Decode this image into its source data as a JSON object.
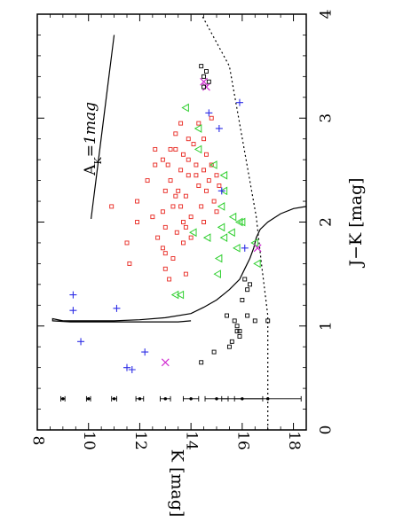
{
  "chart_data": {
    "type": "scatter",
    "title": "",
    "orientation": "rotated-90-clockwise",
    "xlabel": "J−K  [mag]",
    "ylabel": "K  [mag]",
    "xlim": [
      0,
      4
    ],
    "ylim": [
      18.5,
      8
    ],
    "x_ticks": [
      0,
      1,
      2,
      3,
      4
    ],
    "x_tick_labels": [
      "0",
      "1",
      "2",
      "3",
      "4"
    ],
    "y_ticks": [
      8,
      10,
      12,
      14,
      16,
      18
    ],
    "y_tick_labels": [
      "8",
      "10",
      "12",
      "14",
      "16",
      "18"
    ],
    "grid": false,
    "colors": {
      "axes": "#000000",
      "red_squares": "#e8261f",
      "green_triangles": "#2fcf2f",
      "blue_plus": "#2e2ee6",
      "magenta_x": "#d12ed1",
      "black_squares": "#000000"
    },
    "annotation": {
      "label_main": "A",
      "label_sub": "K",
      "label_tail": "=1mag",
      "reddening_vector": [
        [
          2.03,
          10.1
        ],
        [
          3.8,
          11.0
        ]
      ]
    },
    "series": [
      {
        "marker": "square-open",
        "color": "#e8261f",
        "points": [
          [
            2.15,
            10.9
          ],
          [
            2.2,
            11.9
          ],
          [
            2.0,
            11.9
          ],
          [
            1.8,
            11.5
          ],
          [
            1.6,
            11.6
          ],
          [
            2.7,
            12.6
          ],
          [
            2.4,
            12.3
          ],
          [
            2.55,
            12.6
          ],
          [
            2.05,
            12.5
          ],
          [
            2.1,
            12.9
          ],
          [
            1.85,
            12.7
          ],
          [
            1.75,
            12.9
          ],
          [
            2.3,
            13.0
          ],
          [
            2.55,
            13.1
          ],
          [
            2.7,
            13.4
          ],
          [
            2.4,
            13.2
          ],
          [
            2.15,
            13.3
          ],
          [
            1.95,
            13.0
          ],
          [
            1.7,
            13.0
          ],
          [
            1.55,
            13.0
          ],
          [
            1.45,
            13.15
          ],
          [
            2.85,
            13.4
          ],
          [
            2.95,
            13.6
          ],
          [
            2.65,
            13.7
          ],
          [
            2.5,
            13.6
          ],
          [
            2.3,
            13.5
          ],
          [
            2.15,
            13.6
          ],
          [
            2.0,
            13.7
          ],
          [
            1.9,
            13.45
          ],
          [
            1.8,
            13.7
          ],
          [
            2.75,
            14.1
          ],
          [
            2.6,
            13.9
          ],
          [
            2.45,
            13.9
          ],
          [
            2.25,
            13.8
          ],
          [
            2.05,
            14.0
          ],
          [
            1.95,
            13.8
          ],
          [
            2.55,
            14.2
          ],
          [
            2.35,
            14.3
          ],
          [
            2.15,
            14.4
          ],
          [
            2.0,
            14.5
          ],
          [
            1.85,
            14.0
          ],
          [
            2.5,
            14.5
          ],
          [
            2.65,
            14.6
          ],
          [
            2.95,
            14.3
          ],
          [
            2.55,
            14.8
          ],
          [
            2.4,
            14.7
          ],
          [
            2.3,
            14.6
          ],
          [
            2.2,
            14.9
          ],
          [
            2.1,
            15.0
          ],
          [
            2.35,
            15.1
          ],
          [
            2.45,
            15.0
          ],
          [
            2.45,
            14.2
          ],
          [
            2.8,
            14.5
          ],
          [
            3.0,
            14.8
          ],
          [
            2.25,
            13.4
          ],
          [
            2.8,
            13.9
          ],
          [
            2.7,
            13.2
          ],
          [
            1.5,
            13.8
          ],
          [
            1.65,
            13.3
          ],
          [
            2.6,
            12.9
          ]
        ]
      },
      {
        "marker": "triangle-left-open",
        "color": "#2fcf2f",
        "points": [
          [
            3.1,
            13.8
          ],
          [
            2.9,
            14.3
          ],
          [
            2.7,
            14.3
          ],
          [
            2.55,
            14.9
          ],
          [
            2.45,
            15.3
          ],
          [
            2.3,
            15.3
          ],
          [
            2.15,
            15.2
          ],
          [
            2.0,
            16.0
          ],
          [
            2.05,
            15.65
          ],
          [
            1.95,
            15.2
          ],
          [
            1.9,
            14.1
          ],
          [
            1.85,
            14.65
          ],
          [
            1.8,
            16.5
          ],
          [
            1.65,
            15.1
          ],
          [
            1.6,
            16.6
          ],
          [
            1.5,
            15.05
          ],
          [
            1.3,
            13.4
          ],
          [
            1.3,
            13.6
          ],
          [
            1.75,
            15.8
          ],
          [
            1.9,
            15.6
          ],
          [
            2.0,
            15.9
          ],
          [
            1.85,
            15.3
          ]
        ]
      },
      {
        "marker": "plus",
        "color": "#2e2ee6",
        "points": [
          [
            3.15,
            15.9
          ],
          [
            3.05,
            14.7
          ],
          [
            2.9,
            15.1
          ],
          [
            2.3,
            15.2
          ],
          [
            1.75,
            16.1
          ],
          [
            1.3,
            9.4
          ],
          [
            1.15,
            9.4
          ],
          [
            1.17,
            11.1
          ],
          [
            0.85,
            9.7
          ],
          [
            0.75,
            12.2
          ],
          [
            0.6,
            11.5
          ],
          [
            0.58,
            11.7
          ]
        ]
      },
      {
        "marker": "x",
        "color": "#d12ed1",
        "points": [
          [
            3.3,
            14.6
          ],
          [
            3.35,
            14.5
          ],
          [
            1.75,
            16.6
          ],
          [
            0.65,
            13.0
          ]
        ]
      },
      {
        "marker": "square-open",
        "color": "#000000",
        "points": [
          [
            3.5,
            14.4
          ],
          [
            3.45,
            14.6
          ],
          [
            3.4,
            14.5
          ],
          [
            3.35,
            14.7
          ],
          [
            3.3,
            14.5
          ],
          [
            1.45,
            16.1
          ],
          [
            1.4,
            16.3
          ],
          [
            1.35,
            16.2
          ],
          [
            1.25,
            16.0
          ],
          [
            1.1,
            15.4
          ],
          [
            1.05,
            15.7
          ],
          [
            1.0,
            15.8
          ],
          [
            0.95,
            15.8
          ],
          [
            0.9,
            15.9
          ],
          [
            0.85,
            15.6
          ],
          [
            0.8,
            15.5
          ],
          [
            1.05,
            16.5
          ],
          [
            1.05,
            17.0
          ],
          [
            0.75,
            14.9
          ],
          [
            0.65,
            14.4
          ],
          [
            1.1,
            16.2
          ],
          [
            0.95,
            15.9
          ]
        ]
      },
      {
        "marker": "errorbar",
        "color": "#000000",
        "points": [
          [
            0.3,
            9.0,
            0.08
          ],
          [
            0.3,
            10.0,
            0.08
          ],
          [
            0.3,
            11.0,
            0.1
          ],
          [
            0.3,
            12.0,
            0.15
          ],
          [
            0.3,
            13.0,
            0.2
          ],
          [
            0.3,
            14.0,
            0.3
          ],
          [
            0.3,
            15.0,
            0.45
          ],
          [
            0.3,
            16.0,
            0.8
          ],
          [
            0.3,
            17.0,
            1.3
          ]
        ]
      }
    ],
    "lines": [
      {
        "style": "solid",
        "color": "#000000",
        "points": [
          [
            2.15,
            18.5
          ],
          [
            2.13,
            18.0
          ],
          [
            2.08,
            17.5
          ],
          [
            2.0,
            17.0
          ],
          [
            1.93,
            16.7
          ],
          [
            1.85,
            16.55
          ],
          [
            1.75,
            16.45
          ],
          [
            1.65,
            16.3
          ],
          [
            1.55,
            16.1
          ],
          [
            1.45,
            15.9
          ],
          [
            1.35,
            15.5
          ],
          [
            1.25,
            15.0
          ],
          [
            1.18,
            14.5
          ],
          [
            1.12,
            14.0
          ],
          [
            1.08,
            13.0
          ],
          [
            1.06,
            12.0
          ],
          [
            1.05,
            11.0
          ],
          [
            1.05,
            10.0
          ],
          [
            1.05,
            9.0
          ],
          [
            1.07,
            8.6
          ],
          [
            1.05,
            8.6
          ],
          [
            1.04,
            9.3
          ],
          [
            1.04,
            10.5
          ],
          [
            1.04,
            12.0
          ],
          [
            1.04,
            13.5
          ],
          [
            1.05,
            14.0
          ]
        ]
      },
      {
        "style": "dotted",
        "color": "#000000",
        "points": [
          [
            0.0,
            17.0
          ],
          [
            1.1,
            17.0
          ],
          [
            1.6,
            16.75
          ],
          [
            2.05,
            16.55
          ],
          [
            3.5,
            15.5
          ],
          [
            4.0,
            14.4
          ]
        ]
      }
    ]
  }
}
